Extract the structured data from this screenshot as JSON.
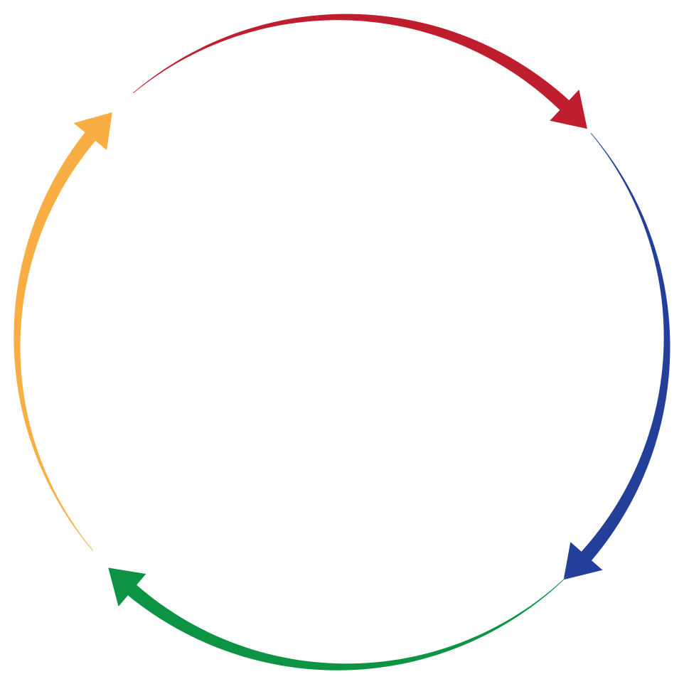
{
  "diagram": {
    "type": "cycle",
    "direction": "clockwise",
    "arrows": [
      {
        "id": "top",
        "color": "#BE1E2D",
        "from": "top-left",
        "to": "top-right"
      },
      {
        "id": "right",
        "color": "#243F99",
        "from": "top-right",
        "to": "bottom-right"
      },
      {
        "id": "bottom",
        "color": "#0C9444",
        "from": "bottom-right",
        "to": "bottom-left"
      },
      {
        "id": "left",
        "color": "#F9AE43",
        "from": "bottom-left",
        "to": "top-left"
      }
    ]
  }
}
